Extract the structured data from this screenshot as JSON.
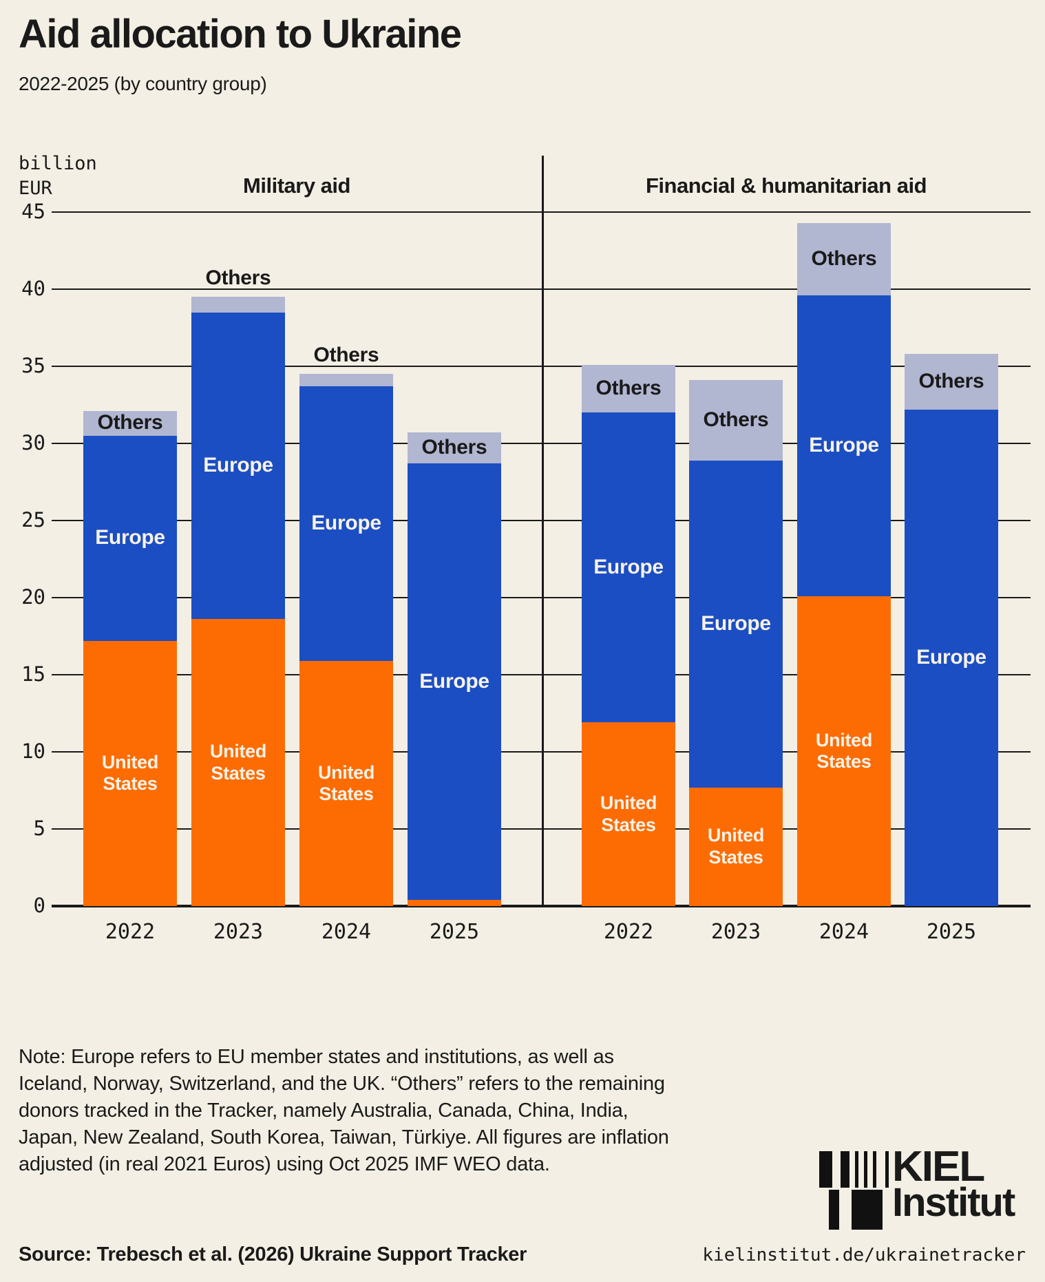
{
  "header": {
    "title": "Aid allocation to Ukraine",
    "subtitle": "2022-2025 (by country group)"
  },
  "axis": {
    "unit_label": "billion\nEUR",
    "y_ticks": [
      0,
      5,
      10,
      15,
      20,
      25,
      30,
      35,
      40,
      45
    ],
    "y_max": 45
  },
  "chart_data": {
    "type": "bar",
    "stacked": true,
    "unit": "billion EUR",
    "categories": [
      "2022",
      "2023",
      "2024",
      "2025"
    ],
    "series_order": [
      "United States",
      "Europe",
      "Others"
    ],
    "legend_position": "in-bar labels",
    "grid": true,
    "ylim": [
      0,
      45
    ],
    "panels": [
      {
        "title": "Military aid",
        "series": [
          {
            "name": "United States",
            "values": [
              17.2,
              18.6,
              15.9,
              0.4
            ]
          },
          {
            "name": "Europe",
            "values": [
              13.3,
              19.9,
              17.8,
              28.3
            ]
          },
          {
            "name": "Others",
            "values": [
              1.6,
              1.0,
              0.8,
              2.0
            ]
          }
        ]
      },
      {
        "title": "Financial & humanitarian aid",
        "series": [
          {
            "name": "United States",
            "values": [
              11.9,
              7.7,
              20.1,
              0.0
            ]
          },
          {
            "name": "Europe",
            "values": [
              20.1,
              21.2,
              19.5,
              32.2
            ]
          },
          {
            "name": "Others",
            "values": [
              3.1,
              5.2,
              4.7,
              3.6
            ]
          }
        ]
      }
    ],
    "colors": {
      "United States": "#FD6C03",
      "Europe": "#1B4EC3",
      "Others": "#B1B6D1"
    }
  },
  "note": {
    "text": "Note: Europe refers to EU member states and institutions, as well as Iceland, Norway, Switzerland, and the UK. “Others” refers to the remaining donors tracked in the Tracker, namely Australia, Canada, China, India, Japan, New Zealand, South Korea, Taiwan, Türkiye. All figures are inflation adjusted (in real 2021 Euros) using Oct 2025 IMF WEO data."
  },
  "source": {
    "label": "Source: Trebesch et al. (2026) Ukraine Support Tracker",
    "url": "kielinstitut.de/ukrainetracker"
  },
  "logo": {
    "line1": "KIEL",
    "line2": "Institut"
  },
  "colors": {
    "background": "#F3EFE4",
    "text": "#1A1A1A",
    "grid": "#1A1A1A"
  }
}
